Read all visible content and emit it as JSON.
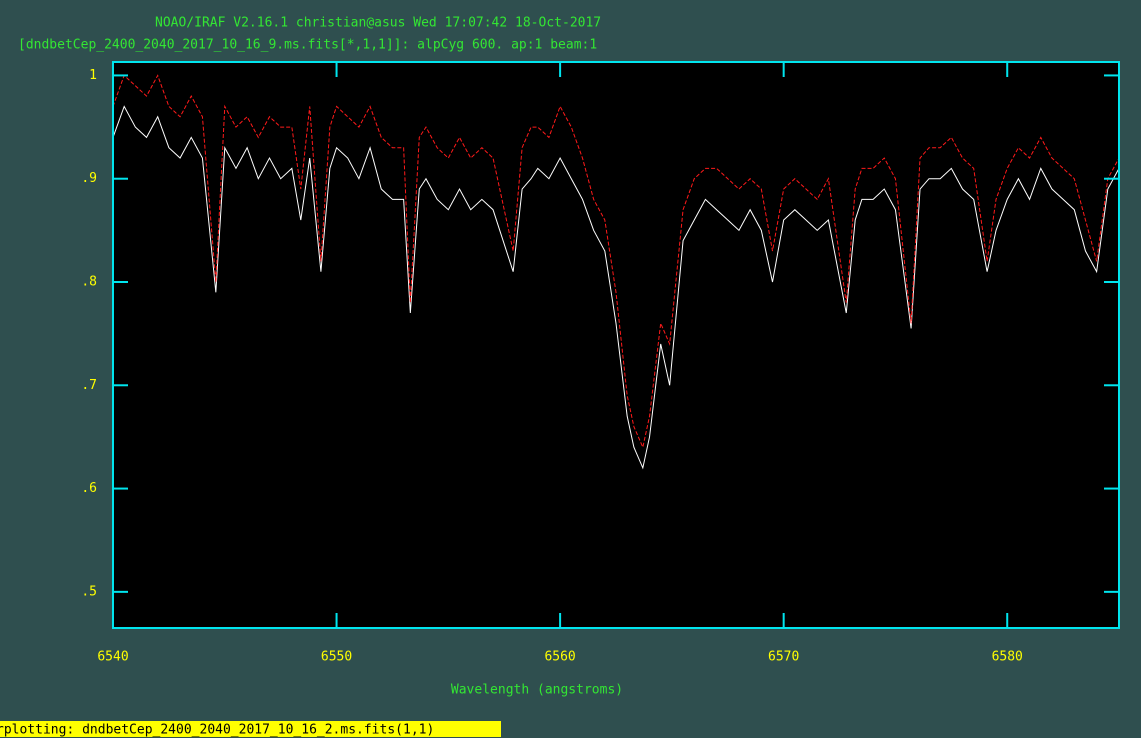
{
  "chart_data": {
    "type": "line",
    "title": "NOAO/IRAF V2.16.1 christian@asus Wed 17:07:42 18-Oct-2017",
    "subtitle": "[dndbetCep_2400_2040_2017_10_16_9.ms.fits[*,1,1]]: alpCyg 600. ap:1 beam:1",
    "x_label": "Wavelength (angstroms)",
    "status": "rplotting: dndbetCep_2400_2040_2017_10_16_2.ms.fits(1,1)",
    "xlim": [
      6540,
      6585
    ],
    "ylim": [
      0.465,
      1.013
    ],
    "xticks": [
      6540,
      6550,
      6560,
      6570,
      6580
    ],
    "yticks": [
      {
        "value": 0.5,
        "label": ".5"
      },
      {
        "value": 0.6,
        "label": ".6"
      },
      {
        "value": 0.7,
        "label": ".7"
      },
      {
        "value": 0.8,
        "label": ".8"
      },
      {
        "value": 0.9,
        "label": ".9"
      },
      1
    ],
    "x": [
      6540,
      6540.5,
      6541,
      6541.5,
      6542,
      6542.5,
      6543,
      6543.5,
      6544,
      6544.6,
      6545,
      6545.5,
      6546,
      6546.5,
      6547,
      6547.5,
      6548,
      6548.4,
      6548.8,
      6549.3,
      6549.7,
      6550,
      6550.5,
      6551,
      6551.5,
      6552,
      6552.5,
      6553,
      6553.3,
      6553.7,
      6554,
      6554.5,
      6555,
      6555.5,
      6556,
      6556.5,
      6557,
      6557.9,
      6558.3,
      6558.7,
      6559,
      6559.5,
      6560,
      6560.5,
      6561,
      6561.5,
      6562,
      6562.5,
      6563,
      6563.3,
      6563.7,
      6564,
      6564.5,
      6564.9,
      6565.5,
      6566,
      6566.5,
      6567,
      6567.5,
      6568,
      6568.5,
      6569,
      6569.5,
      6570,
      6570.5,
      6571,
      6571.5,
      6572,
      6572.8,
      6573.2,
      6573.5,
      6574,
      6574.5,
      6575,
      6575.7,
      6576.1,
      6576.5,
      6577,
      6577.5,
      6578,
      6578.5,
      6579.1,
      6579.5,
      6580,
      6580.5,
      6581,
      6581.5,
      6582,
      6582.5,
      6583,
      6583.5,
      6584,
      6584.5,
      6585
    ],
    "series": [
      {
        "color": "#ffffff",
        "dashed": false,
        "values": [
          0.94,
          0.97,
          0.95,
          0.94,
          0.96,
          0.93,
          0.92,
          0.94,
          0.92,
          0.79,
          0.93,
          0.91,
          0.93,
          0.9,
          0.92,
          0.9,
          0.91,
          0.86,
          0.92,
          0.81,
          0.91,
          0.93,
          0.92,
          0.9,
          0.93,
          0.89,
          0.88,
          0.88,
          0.77,
          0.89,
          0.9,
          0.88,
          0.87,
          0.89,
          0.87,
          0.88,
          0.87,
          0.81,
          0.89,
          0.9,
          0.91,
          0.9,
          0.92,
          0.9,
          0.88,
          0.85,
          0.83,
          0.76,
          0.67,
          0.64,
          0.62,
          0.65,
          0.74,
          0.7,
          0.84,
          0.86,
          0.88,
          0.87,
          0.86,
          0.85,
          0.87,
          0.85,
          0.8,
          0.86,
          0.87,
          0.86,
          0.85,
          0.86,
          0.77,
          0.86,
          0.88,
          0.88,
          0.89,
          0.87,
          0.755,
          0.89,
          0.9,
          0.9,
          0.91,
          0.89,
          0.88,
          0.81,
          0.85,
          0.88,
          0.9,
          0.88,
          0.91,
          0.89,
          0.88,
          0.87,
          0.83,
          0.81,
          0.89,
          0.91
        ]
      },
      {
        "color": "#ff1a1a",
        "dashed": true,
        "values": [
          0.97,
          1.0,
          0.99,
          0.98,
          1.0,
          0.97,
          0.96,
          0.98,
          0.96,
          0.8,
          0.97,
          0.95,
          0.96,
          0.94,
          0.96,
          0.95,
          0.95,
          0.89,
          0.97,
          0.82,
          0.95,
          0.97,
          0.96,
          0.95,
          0.97,
          0.94,
          0.93,
          0.93,
          0.78,
          0.94,
          0.95,
          0.93,
          0.92,
          0.94,
          0.92,
          0.93,
          0.92,
          0.83,
          0.93,
          0.95,
          0.95,
          0.94,
          0.97,
          0.95,
          0.92,
          0.88,
          0.86,
          0.79,
          0.69,
          0.66,
          0.64,
          0.67,
          0.76,
          0.74,
          0.87,
          0.9,
          0.91,
          0.91,
          0.9,
          0.89,
          0.9,
          0.89,
          0.83,
          0.89,
          0.9,
          0.89,
          0.88,
          0.9,
          0.78,
          0.89,
          0.91,
          0.91,
          0.92,
          0.9,
          0.76,
          0.92,
          0.93,
          0.93,
          0.94,
          0.92,
          0.91,
          0.82,
          0.88,
          0.91,
          0.93,
          0.92,
          0.94,
          0.92,
          0.91,
          0.9,
          0.86,
          0.82,
          0.9,
          0.92
        ]
      }
    ]
  }
}
